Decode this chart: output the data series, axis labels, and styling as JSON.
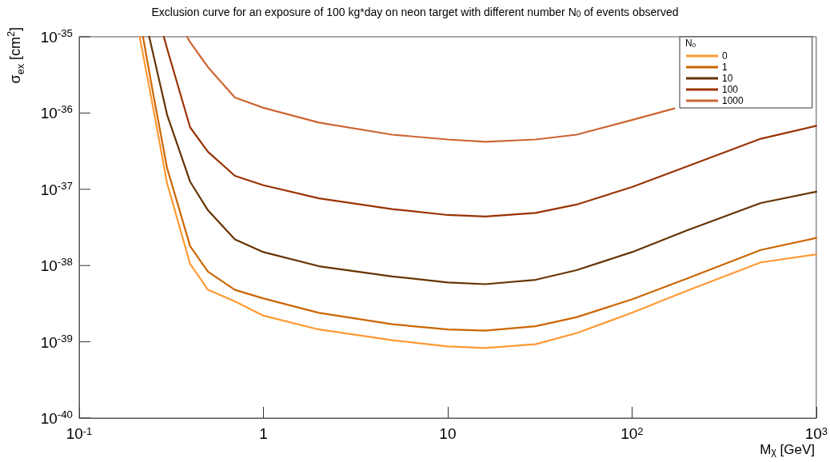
{
  "chart_data": {
    "type": "line",
    "title": "Exclusion curve for an exposure of 100 kg*day on neon target with different number N$_{0}$ of events observed",
    "xlabel": "M$_{χ}$ [GeV]",
    "ylabel": "σ$_{ex}$ [cm$^{2}$]",
    "legend_title": "N$_{0}$",
    "log": "xy",
    "grid": false,
    "legend": "top right",
    "marker": "none",
    "line_style": "solid",
    "xlim": [
      0.1,
      1000
    ],
    "xticks": [
      {
        "value": 0.1,
        "label": "10$^{-1}$"
      },
      1,
      10,
      {
        "value": 100,
        "label": "10$^{2}$"
      },
      {
        "value": 1000,
        "label": "10$^{3}$"
      }
    ],
    "ylim": [
      1e-40,
      1e-35
    ],
    "yticks": [
      {
        "value": 1e-40,
        "label": "10$^{-40}$"
      },
      {
        "value": 1e-39,
        "label": "10$^{-39}$"
      },
      {
        "value": 1e-38,
        "label": "10$^{-38}$"
      },
      {
        "value": 1e-37,
        "label": "10$^{-37}$"
      },
      {
        "value": 1e-36,
        "label": "10$^{-36}$"
      },
      {
        "value": 1e-35,
        "label": "10$^{-35}$"
      }
    ],
    "series": [
      {
        "name": "0",
        "color": "#ff9933",
        "x": [
          0.213,
          0.25,
          0.3,
          0.4,
          0.5,
          0.7,
          1,
          2,
          5,
          10,
          16,
          30,
          50,
          100,
          200,
          500,
          1000
        ],
        "values": [
          1e-35,
          1.3e-36,
          1.2e-37,
          1.05e-38,
          4.8e-39,
          3.4e-39,
          2.2e-39,
          1.45e-39,
          1.05e-39,
          8.7e-40,
          8.3e-40,
          9.3e-40,
          1.3e-39,
          2.4e-39,
          4.7e-39,
          1.1e-38,
          1.4e-38
        ]
      },
      {
        "name": "1",
        "color": "#cc6600",
        "x": [
          0.222,
          0.25,
          0.3,
          0.4,
          0.5,
          0.7,
          1,
          2,
          5,
          10,
          16,
          30,
          50,
          100,
          200,
          500,
          1000
        ],
        "values": [
          1e-35,
          2e-36,
          1.9e-37,
          1.8e-38,
          8.3e-39,
          4.8e-39,
          3.7e-39,
          2.4e-39,
          1.7e-39,
          1.45e-39,
          1.4e-39,
          1.6e-39,
          2.1e-39,
          3.6e-39,
          6.8e-39,
          1.6e-38,
          2.3e-38
        ]
      },
      {
        "name": "10",
        "color": "#663300",
        "x": [
          0.24,
          0.3,
          0.4,
          0.5,
          0.7,
          1,
          2,
          5,
          10,
          16,
          30,
          50,
          100,
          200,
          500,
          1000
        ],
        "values": [
          1e-35,
          9.5e-37,
          1.26e-37,
          5.3e-38,
          2.2e-38,
          1.5e-38,
          9.8e-39,
          7.2e-39,
          6e-39,
          5.7e-39,
          6.5e-39,
          8.7e-39,
          1.5e-38,
          2.9e-38,
          6.6e-38,
          9.3e-38
        ]
      },
      {
        "name": "100",
        "color": "#993300",
        "x": [
          0.288,
          0.3,
          0.4,
          0.5,
          0.7,
          1,
          2,
          5,
          10,
          16,
          30,
          50,
          100,
          200,
          500,
          1000
        ],
        "values": [
          1e-35,
          7e-36,
          6.5e-37,
          3.1e-37,
          1.5e-37,
          1.13e-37,
          7.6e-38,
          5.5e-38,
          4.6e-38,
          4.4e-38,
          4.9e-38,
          6.3e-38,
          1.07e-37,
          2e-37,
          4.6e-37,
          6.8e-37
        ]
      },
      {
        "name": "1000",
        "color": "#cc6633",
        "x": [
          0.385,
          0.4,
          0.5,
          0.7,
          1,
          2,
          5,
          10,
          16,
          30,
          50,
          100,
          170
        ],
        "values": [
          1e-35,
          8.5e-36,
          4e-36,
          1.6e-36,
          1.17e-36,
          7.5e-37,
          5.2e-37,
          4.5e-37,
          4.2e-37,
          4.5e-37,
          5.2e-37,
          8.1e-37,
          1.15e-36
        ]
      }
    ]
  }
}
